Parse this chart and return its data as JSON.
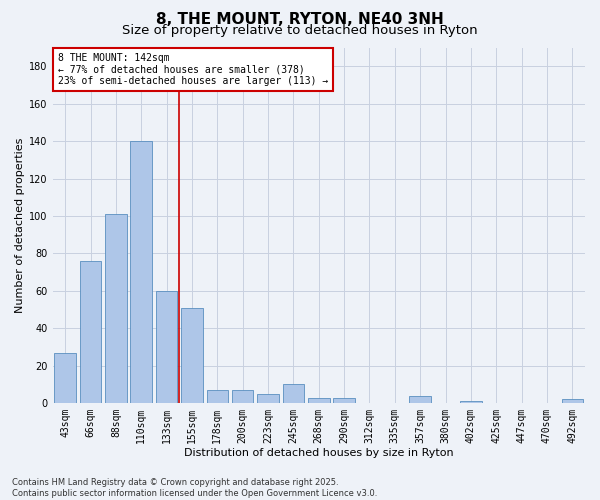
{
  "title": "8, THE MOUNT, RYTON, NE40 3NH",
  "subtitle": "Size of property relative to detached houses in Ryton",
  "xlabel": "Distribution of detached houses by size in Ryton",
  "ylabel": "Number of detached properties",
  "categories": [
    "43sqm",
    "66sqm",
    "88sqm",
    "110sqm",
    "133sqm",
    "155sqm",
    "178sqm",
    "200sqm",
    "223sqm",
    "245sqm",
    "268sqm",
    "290sqm",
    "312sqm",
    "335sqm",
    "357sqm",
    "380sqm",
    "402sqm",
    "425sqm",
    "447sqm",
    "470sqm",
    "492sqm"
  ],
  "values": [
    27,
    76,
    101,
    140,
    60,
    51,
    7,
    7,
    5,
    10,
    3,
    3,
    0,
    0,
    4,
    0,
    1,
    0,
    0,
    0,
    2
  ],
  "bar_color": "#aec6e8",
  "bar_edge_color": "#5a8fc0",
  "vline_x": 4.5,
  "vline_color": "#cc0000",
  "annotation_text": "8 THE MOUNT: 142sqm\n← 77% of detached houses are smaller (378)\n23% of semi-detached houses are larger (113) →",
  "annotation_box_color": "#cc0000",
  "ylim": [
    0,
    190
  ],
  "yticks": [
    0,
    20,
    40,
    60,
    80,
    100,
    120,
    140,
    160,
    180
  ],
  "title_fontsize": 11,
  "subtitle_fontsize": 9.5,
  "label_fontsize": 8,
  "tick_fontsize": 7,
  "annot_fontsize": 7,
  "footnote": "Contains HM Land Registry data © Crown copyright and database right 2025.\nContains public sector information licensed under the Open Government Licence v3.0.",
  "background_color": "#eef2f8",
  "plot_background_color": "#eef2f8",
  "grid_color": "#c8d0e0"
}
